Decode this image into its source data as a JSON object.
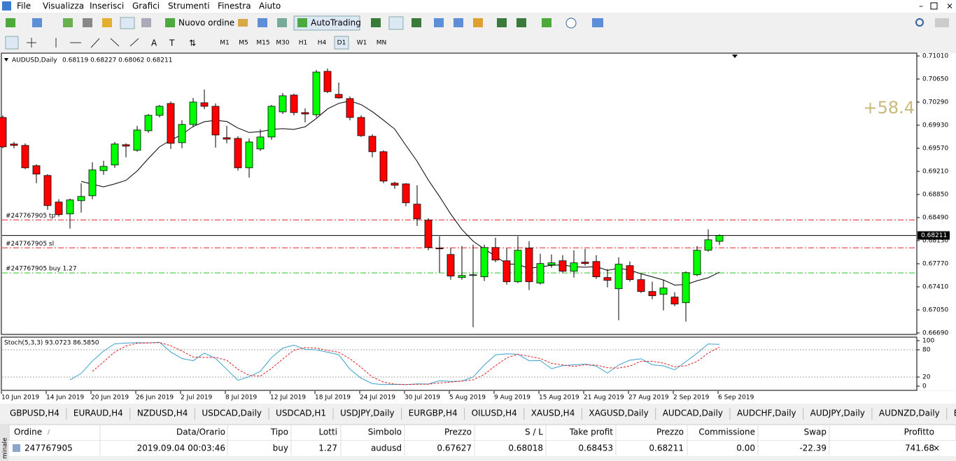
{
  "menu": [
    "File",
    "Visualizza",
    "Inserisci",
    "Grafici",
    "Strumenti",
    "Finestra",
    "Aiuto"
  ],
  "toolbar": {
    "new_order": "Nuovo ordine",
    "autotrading": "AutoTrading",
    "timeframes": [
      "M1",
      "M5",
      "M15",
      "M30",
      "H1",
      "H4",
      "D1",
      "W1",
      "MN"
    ]
  },
  "chart_data": {
    "type": "candlestick",
    "title": "AUDUSD,Daily",
    "ohlc_text": "0.68119 0.68227 0.68062 0.68211",
    "categories": [
      "10 Jun 2019",
      null,
      null,
      null,
      "14 Jun 2019",
      null,
      null,
      null,
      "20 Jun 2019",
      null,
      null,
      null,
      "26 Jun 2019",
      null,
      null,
      null,
      "2 Jul 2019",
      null,
      null,
      null,
      "8 Jul 2019",
      null,
      null,
      null,
      "12 Jul 2019",
      null,
      null,
      null,
      "18 Jul 2019",
      null,
      null,
      null,
      "24 Jul 2019",
      null,
      null,
      null,
      "30 Jul 2019",
      null,
      null,
      null,
      "5 Aug 2019",
      null,
      null,
      null,
      "9 Aug 2019",
      null,
      null,
      null,
      "15 Aug 2019",
      null,
      null,
      null,
      "21 Aug 2019",
      null,
      null,
      null,
      "27 Aug 2019",
      null,
      null,
      null,
      "2 Sep 2019",
      null,
      null,
      null,
      "6 Sep 2019"
    ],
    "open": [
      0.70051,
      0.69637,
      0.69615,
      0.69299,
      0.69146,
      0.68732,
      0.68547,
      0.68754,
      0.6883,
      0.69222,
      0.6931,
      0.69626,
      0.69539,
      0.69844,
      0.70084,
      0.70269,
      0.69658,
      0.69942,
      0.7028,
      0.70225,
      0.69735,
      0.69724,
      0.69266,
      0.6956,
      0.69746,
      0.70138,
      0.704,
      0.70127,
      0.70094,
      0.7077,
      0.70411,
      0.70345,
      0.70051,
      0.69757,
      0.69517,
      0.69026,
      0.69015,
      0.68699,
      0.68449,
      0.68013,
      0.67914,
      0.67555,
      0.67587,
      0.67566,
      0.68023,
      0.67816,
      0.67489,
      0.68013,
      0.67468,
      0.67751,
      0.67816,
      0.67653,
      0.67795,
      0.67805,
      0.67555,
      0.6738,
      0.6774,
      0.67522,
      0.67337,
      0.67293,
      0.6725,
      0.67162,
      0.67598,
      0.6798,
      0.68119
    ],
    "high": [
      0.70084,
      0.69669,
      0.69648,
      0.69321,
      0.69168,
      0.68776,
      0.68786,
      0.69026,
      0.69353,
      0.69375,
      0.69669,
      0.69648,
      0.6992,
      0.70105,
      0.70247,
      0.70302,
      0.70007,
      0.70356,
      0.70487,
      0.70269,
      0.6992,
      0.69757,
      0.69724,
      0.69866,
      0.70247,
      0.70432,
      0.70421,
      0.70193,
      0.70792,
      0.70814,
      0.70596,
      0.70378,
      0.70084,
      0.69789,
      0.69539,
      0.69048,
      0.69026,
      0.68994,
      0.68481,
      0.68198,
      0.68013,
      0.68045,
      0.68067,
      0.68067,
      0.68176,
      0.68013,
      0.68198,
      0.68122,
      0.67925,
      0.67914,
      0.67904,
      0.6798,
      0.68002,
      0.67904,
      0.67686,
      0.67871,
      0.67805,
      0.67609,
      0.67489,
      0.67522,
      0.67326,
      0.67653,
      0.68045,
      0.68307,
      0.68227
    ],
    "low": [
      0.69571,
      0.69571,
      0.69244,
      0.69026,
      0.68612,
      0.68503,
      0.68318,
      0.68568,
      0.68776,
      0.69157,
      0.69266,
      0.6943,
      0.69517,
      0.69811,
      0.70051,
      0.6956,
      0.69571,
      0.69898,
      0.70182,
      0.69582,
      0.69648,
      0.69222,
      0.69113,
      0.69528,
      0.69702,
      0.70105,
      0.70084,
      0.69975,
      0.70051,
      0.70432,
      0.70345,
      0.70007,
      0.69746,
      0.6943,
      0.69026,
      0.68939,
      0.68667,
      0.68361,
      0.6798,
      0.67631,
      0.67522,
      0.67522,
      0.66781,
      0.675,
      0.67795,
      0.67446,
      0.67468,
      0.67359,
      0.67446,
      0.67707,
      0.67631,
      0.67555,
      0.6774,
      0.67533,
      0.67402,
      0.6689,
      0.67489,
      0.67315,
      0.67217,
      0.67042,
      0.67108,
      0.66868,
      0.67577,
      0.67958,
      0.68062
    ],
    "close": [
      0.69593,
      0.69615,
      0.69266,
      0.69168,
      0.68677,
      0.68536,
      0.68765,
      0.68819,
      0.69233,
      0.69288,
      0.69637,
      0.69604,
      0.69855,
      0.70084,
      0.70225,
      0.69648,
      0.69942,
      0.70291,
      0.70225,
      0.69778,
      0.69713,
      0.69266,
      0.69669,
      0.69746,
      0.70225,
      0.70389,
      0.70127,
      0.70105,
      0.70759,
      0.70454,
      0.70356,
      0.70051,
      0.69767,
      0.69517,
      0.69059,
      0.68994,
      0.68721,
      0.6847,
      0.68023,
      0.68002,
      0.67577,
      0.67587,
      0.67598,
      0.68023,
      0.67827,
      0.67489,
      0.6798,
      0.67489,
      0.67773,
      0.67784,
      0.67653,
      0.67784,
      0.67773,
      0.67566,
      0.67511,
      0.67762,
      0.67522,
      0.67337,
      0.67271,
      0.67391,
      0.67141,
      0.67631,
      0.6798,
      0.68143,
      0.68211
    ],
    "up_color": "#00ff00",
    "down_color": "#ff0000",
    "ylim": [
      0.6669,
      0.7101
    ],
    "yticks": [
      {
        "value": 0.7101,
        "label": "0.71010"
      },
      {
        "value": 0.7065,
        "label": "0.70650"
      },
      {
        "value": 0.7029,
        "label": "0.70290"
      },
      {
        "value": 0.6993,
        "label": "0.69930"
      },
      {
        "value": 0.6957,
        "label": "0.69570"
      },
      {
        "value": 0.6921,
        "label": "0.69210"
      },
      {
        "value": 0.6885,
        "label": "0.68850"
      },
      {
        "value": 0.6849,
        "label": "0.68490"
      },
      {
        "value": 0.6813,
        "label": "0.68130"
      },
      {
        "value": 0.6777,
        "label": "0.67770"
      },
      {
        "value": 0.6741,
        "label": "0.67410"
      },
      {
        "value": 0.6705,
        "label": "0.67050"
      },
      {
        "value": 0.6669,
        "label": "0.66690"
      }
    ],
    "levels": [
      {
        "label": "#247767905 tp",
        "value": 0.68453,
        "color": "#e8262a"
      },
      {
        "label": "#247767905 sl",
        "value": 0.68018,
        "color": "#e8262a"
      },
      {
        "label": "#247767905 buy 1.27",
        "value": 0.67627,
        "color": "#2dc22d"
      }
    ],
    "price_label": {
      "value": 0.68211,
      "label": "0.68211"
    },
    "profit_label": "+58.4",
    "indicator": {
      "title": "Stoch(5,3,3) 93.0723 86.5850",
      "ylim": [
        0,
        100
      ],
      "yticks": [
        100,
        80,
        20,
        0
      ]
    }
  },
  "tabs": [
    "GBPUSD,H4",
    "EURAUD,H4",
    "NZDUSD,H4",
    "USDCAD,Daily",
    "USDCAD,H1",
    "USDJPY,Daily",
    "EURGBP,H4",
    "OILUSD,H4",
    "XAUSD,H4",
    "XAGUSD,Daily",
    "AUDCAD,Daily",
    "AUDCHF,Daily",
    "AUDJPY,Daily",
    "AUDNZD,Daily",
    "EURCAD"
  ],
  "side_tab": "minale",
  "table": {
    "headers": [
      "Ordine",
      "Data/Orario",
      "Tipo",
      "Lotti",
      "Simbolo",
      "Prezzo",
      "S / L",
      "Take profit",
      "Prezzo",
      "Commissione",
      "Swap",
      "Profitto"
    ],
    "rows": [
      [
        "247767905",
        "2019.09.04 00:03:46",
        "buy",
        "1.27",
        "audusd",
        "0.67627",
        "0.68018",
        "0.68453",
        "0.68211",
        "0.00",
        "-22.39",
        "741.68"
      ]
    ]
  }
}
